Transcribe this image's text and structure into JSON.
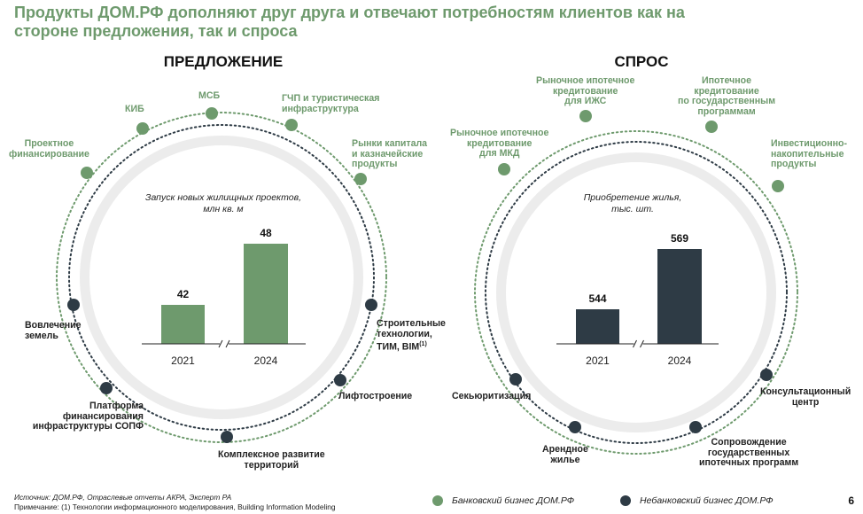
{
  "title": "Продукты ДОМ.РФ дополняют друг друга и отвечают потребностям клиентов как на стороне предложения, так и спроса",
  "colors": {
    "bank": "#6e9a6d",
    "nonbank": "#2e3b45",
    "halo": "#ececec"
  },
  "supply": {
    "heading": "ПРЕДЛОЖЕНИЕ",
    "bank_products": [
      {
        "lines": [
          "Проектное",
          "финансирование"
        ]
      },
      {
        "lines": [
          "КИБ"
        ]
      },
      {
        "lines": [
          "МСБ"
        ]
      },
      {
        "lines": [
          "ГЧП и туристическая",
          "инфраструктура"
        ]
      },
      {
        "lines": [
          "Рынки капитала",
          "и казначейские",
          "продукты"
        ]
      }
    ],
    "nonbank_products": [
      {
        "lines": [
          "Вовлечение",
          "земель"
        ]
      },
      {
        "lines": [
          "Платформа",
          "финансирования",
          "инфраструктуры СОПФ"
        ]
      },
      {
        "lines": [
          "Комплексное развитие",
          "территорий"
        ]
      },
      {
        "lines": [
          "Лифтостроение"
        ]
      },
      {
        "lines": [
          "Строительные",
          "технологии,",
          "ТИМ, BIM"
        ],
        "sup": "(1)"
      }
    ]
  },
  "demand": {
    "heading": "СПРОС",
    "bank_products": [
      {
        "lines": [
          "Рыночное ипотечное",
          "кредитование",
          "для МКД"
        ]
      },
      {
        "lines": [
          "Рыночное ипотечное",
          "кредитование",
          "для ИЖС"
        ]
      },
      {
        "lines": [
          "Ипотечное",
          "кредитование",
          "по государственным",
          "программам"
        ]
      },
      {
        "lines": [
          "Инвестиционно-",
          "накопительные",
          "продукты"
        ]
      }
    ],
    "nonbank_products": [
      {
        "lines": [
          "Секьюритизация"
        ]
      },
      {
        "lines": [
          "Арендное",
          "жилье"
        ]
      },
      {
        "lines": [
          "Сопровождение",
          "государственных",
          "ипотечных программ"
        ]
      },
      {
        "lines": [
          "Консультационный",
          "центр"
        ]
      }
    ]
  },
  "chart_data": [
    {
      "type": "bar",
      "title": "Запуск новых жилищных проектов, млн кв. м",
      "categories": [
        "2021",
        "2024"
      ],
      "values": [
        42,
        48
      ],
      "axis_break": true,
      "color": "#6e9a6d"
    },
    {
      "type": "bar",
      "title": "Приобретение жилья, тыс. шт.",
      "categories": [
        "2021",
        "2024"
      ],
      "values": [
        544,
        569
      ],
      "axis_break": true,
      "color": "#2e3b45"
    }
  ],
  "chart_captions": [
    [
      "Запуск новых жилищных проектов,",
      "млн кв. м"
    ],
    [
      "Приобретение жилья,",
      "тыс. шт."
    ]
  ],
  "footer": {
    "source": "Источник: ДОМ.РФ, Отраслевые отчеты АКРА, Эксперт РА",
    "note": "Примечание: (1) Технологии информационного моделирования, Building Information Modeling",
    "legend_bank": "Банковский бизнес ДОМ.РФ",
    "legend_nonbank": "Небанковский бизнес ДОМ.РФ",
    "page": "6"
  }
}
